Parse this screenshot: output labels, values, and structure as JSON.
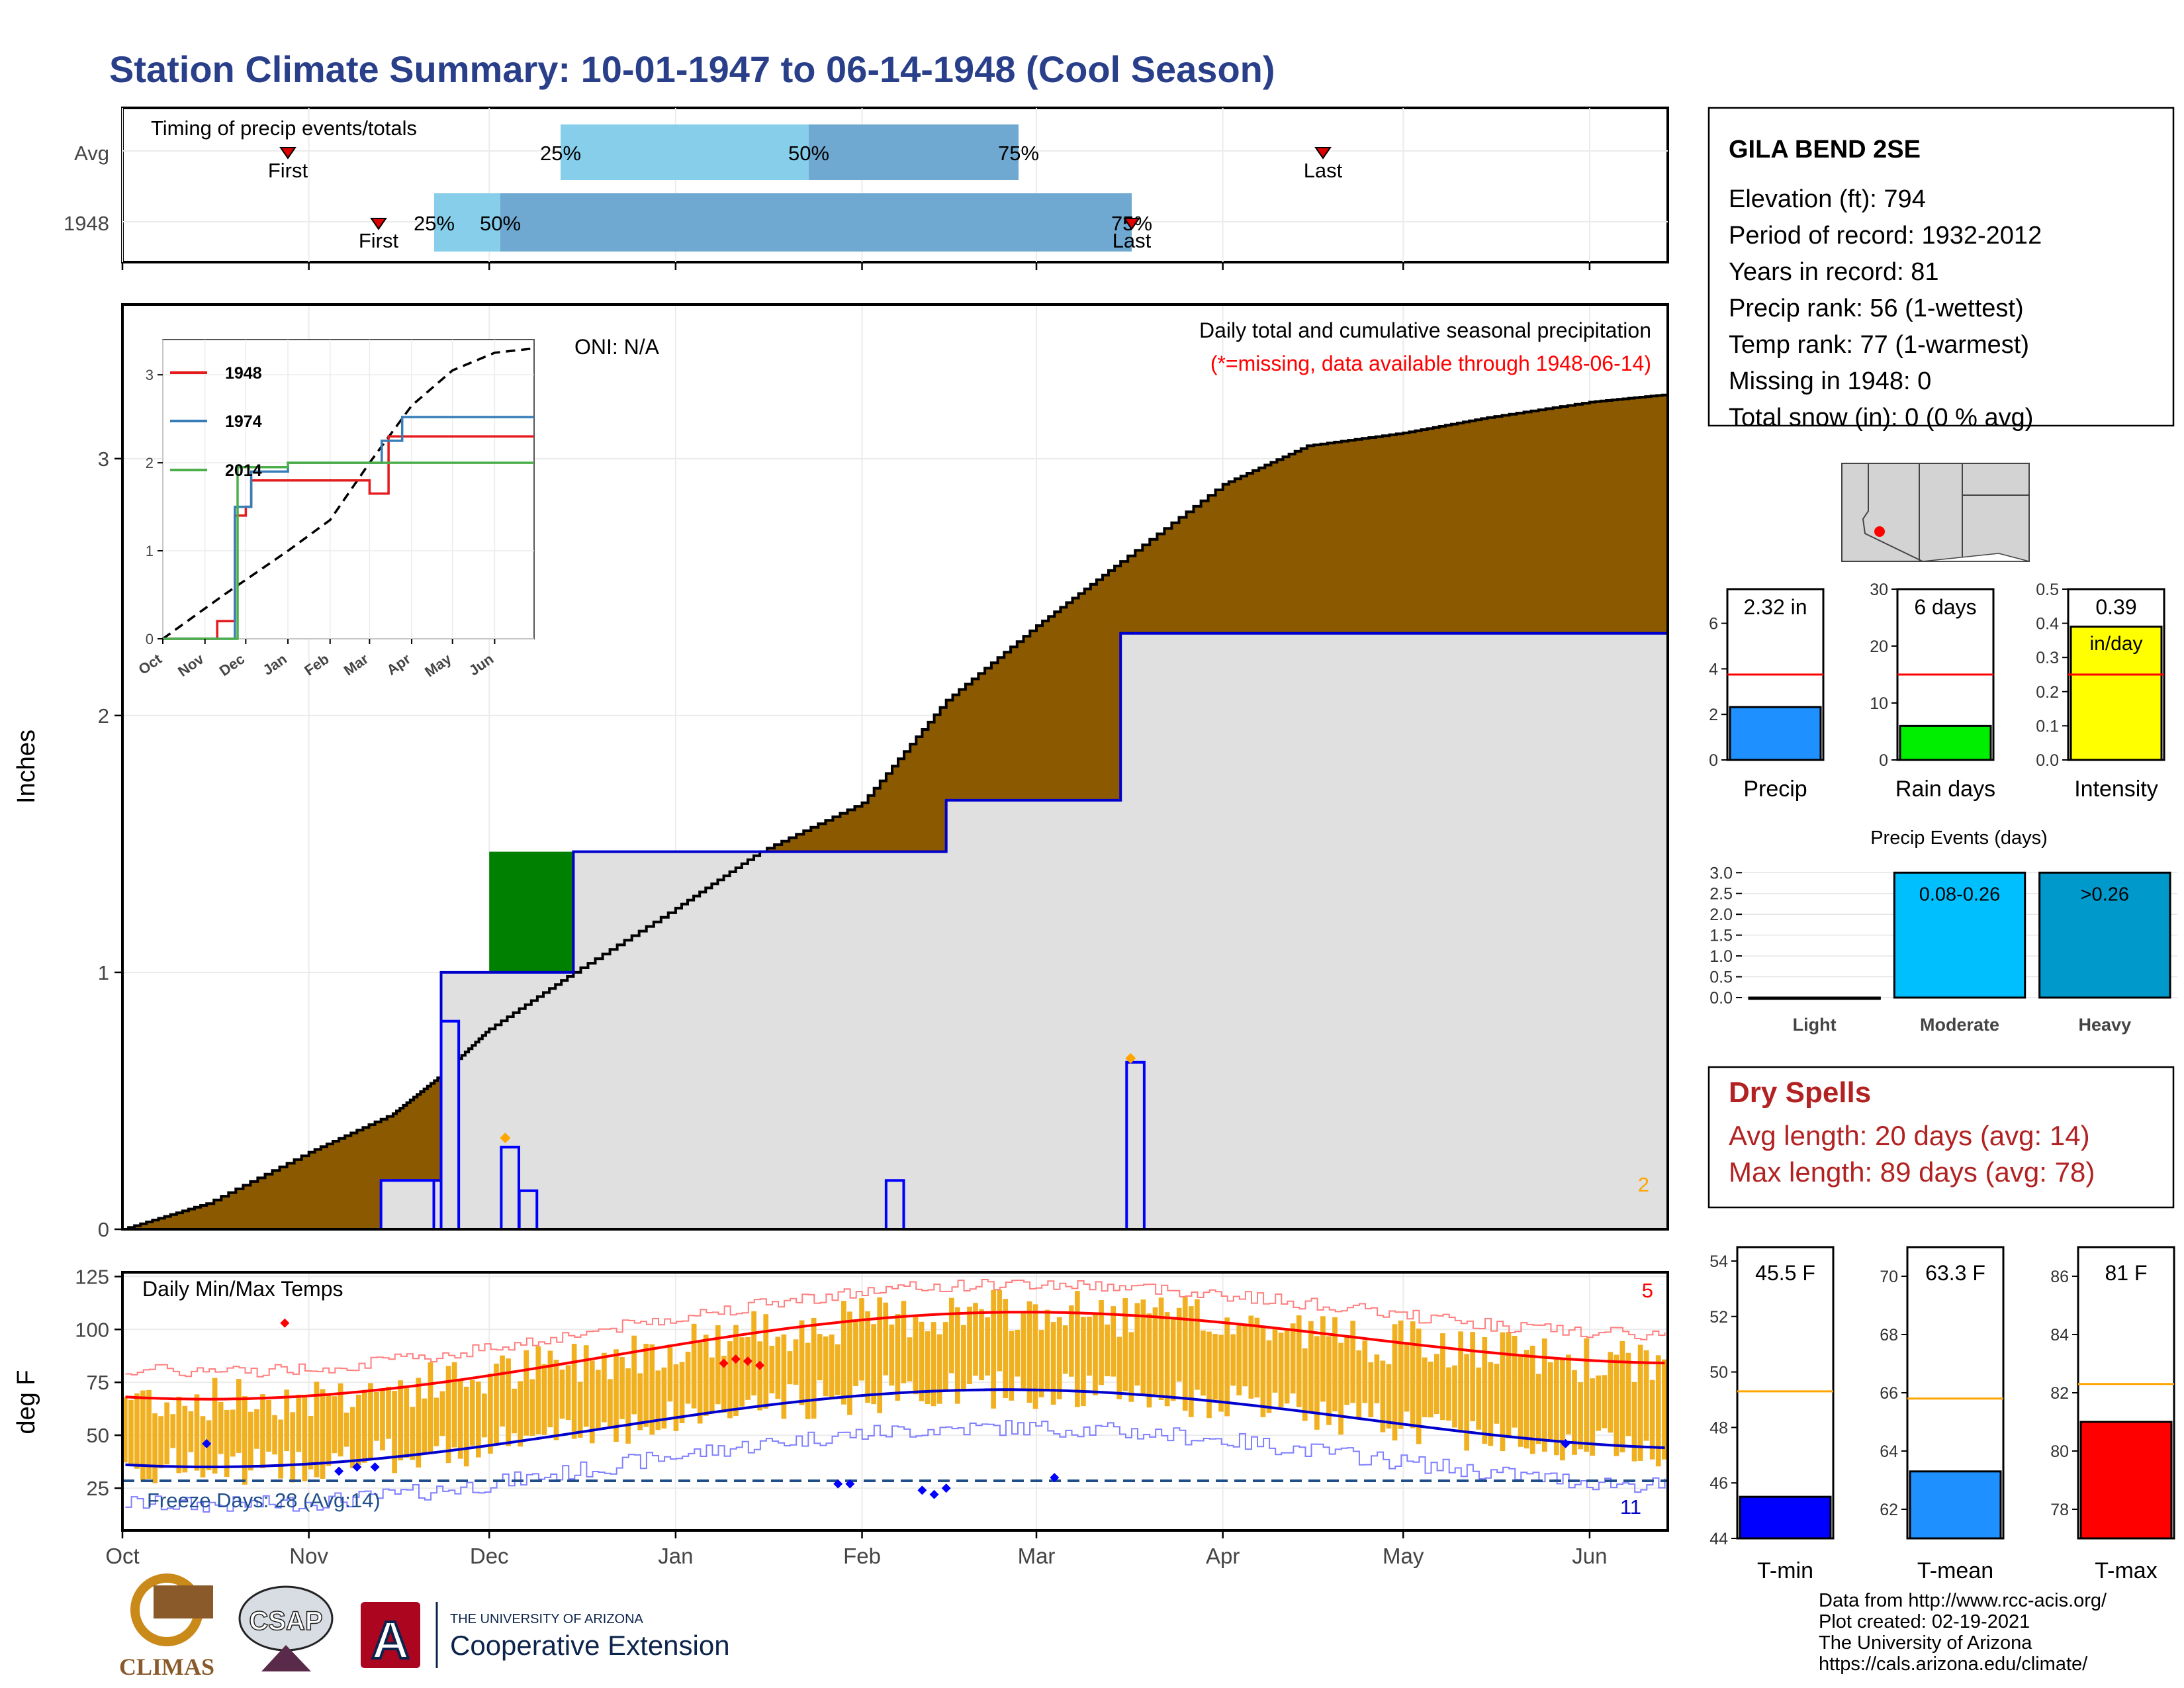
{
  "title": "Station Climate Summary: 10-01-1947 to 06-14-1948 (Cool Season)",
  "colors": {
    "title": "#2a3f8a",
    "brown": "#8b5a00",
    "green": "#008000",
    "grey_fill": "#e0e0e0",
    "blue_line": "#0000cc",
    "bar_light": "#87ceeb",
    "bar_mid": "#6fa8d0",
    "temp_bar": "#f0b020",
    "red": "#ff0000",
    "dark_red": "#b22222",
    "orange": "#ffa500"
  },
  "timing": {
    "label": "Timing of precip events/totals",
    "rows": [
      "Avg",
      "1948"
    ],
    "first": "First",
    "last": "Last",
    "p25": "25%",
    "p50": "50%",
    "p75": "75%"
  },
  "precip_panel": {
    "ylabel": "Inches",
    "oni": "ONI: N/A",
    "caption": "Daily total and cumulative seasonal precipitation",
    "missing_note": "(*=missing, data available through 1948-06-14)",
    "corner_count": "2",
    "yticks": [
      "0",
      "1",
      "2",
      "3"
    ]
  },
  "inset": {
    "yticks": [
      "0",
      "1",
      "2",
      "3"
    ],
    "months": [
      "Oct",
      "Nov",
      "Dec",
      "Jan",
      "Feb",
      "Mar",
      "Apr",
      "May",
      "Jun"
    ],
    "legend": [
      "1948",
      "1974",
      "2014"
    ]
  },
  "temp_panel": {
    "label": "Daily Min/Max Temps",
    "ylabel": "deg F",
    "freeze": "Freeze Days: 28 (Avg:14)",
    "top_count": "5",
    "bottom_count": "11",
    "yticks": [
      "25",
      "50",
      "75",
      "100",
      "125"
    ]
  },
  "x_months": [
    "Oct",
    "Nov",
    "Dec",
    "Jan",
    "Feb",
    "Mar",
    "Apr",
    "May",
    "Jun"
  ],
  "station": {
    "name": "GILA BEND 2SE",
    "lines": [
      "Elevation (ft): 794",
      "Period of record: 1932-2012",
      "Years in record: 81",
      "Precip rank: 56 (1-wettest)",
      "Temp rank: 77 (1-warmest)",
      "Missing in 1948: 0",
      "Total snow (in): 0 (0 % avg)"
    ]
  },
  "mini_bars": [
    {
      "label": "Precip",
      "value_text": "2.32 in",
      "sub": "",
      "value": 2.32,
      "avg": 3.75,
      "max": 7.5,
      "ticks": [
        "0",
        "2",
        "4",
        "6"
      ],
      "tick_vals": [
        0,
        2,
        4,
        6
      ],
      "color": "#1e90ff"
    },
    {
      "label": "Rain days",
      "value_text": "6 days",
      "sub": "",
      "value": 6,
      "avg": 15,
      "max": 30,
      "ticks": [
        "0",
        "10",
        "20",
        "30"
      ],
      "tick_vals": [
        0,
        10,
        20,
        30
      ],
      "color": "#00ee00"
    },
    {
      "label": "Intensity",
      "value_text": "0.39",
      "sub": "in/day",
      "value": 0.39,
      "avg": 0.25,
      "max": 0.5,
      "ticks": [
        "0.0",
        "0.1",
        "0.2",
        "0.3",
        "0.4",
        "0.5"
      ],
      "tick_vals": [
        0,
        0.1,
        0.2,
        0.3,
        0.4,
        0.5
      ],
      "color": "#ffff00"
    }
  ],
  "events": {
    "title": "Precip Events (days)",
    "categories": [
      "Light",
      "Moderate",
      "Heavy"
    ],
    "values": [
      0,
      3,
      3
    ],
    "labels": [
      "",
      "0.08-0.26",
      ">0.26"
    ],
    "ticks": [
      "0.0",
      "0.5",
      "1.0",
      "1.5",
      "2.0",
      "2.5",
      "3.0"
    ],
    "colors": [
      "#87ceeb",
      "#00bfff",
      "#0099cc"
    ]
  },
  "dry_spells": {
    "title": "Dry Spells",
    "avg": "Avg length: 20 days (avg: 14)",
    "max": "Max length: 89 days (avg: 78)"
  },
  "temp_bars": [
    {
      "label": "T-min",
      "value_text": "45.5 F",
      "value": 45.5,
      "avg": 49.3,
      "min": 44,
      "max": 54.5,
      "ticks": [
        "44",
        "46",
        "48",
        "50",
        "52",
        "54"
      ],
      "tick_vals": [
        44,
        46,
        48,
        50,
        52,
        54
      ],
      "color": "#0000ff"
    },
    {
      "label": "T-mean",
      "value_text": "63.3 F",
      "value": 63.3,
      "avg": 65.8,
      "min": 61,
      "max": 71,
      "ticks": [
        "62",
        "64",
        "66",
        "68",
        "70"
      ],
      "tick_vals": [
        62,
        64,
        66,
        68,
        70
      ],
      "color": "#1e90ff"
    },
    {
      "label": "T-max",
      "value_text": "81 F",
      "value": 81,
      "avg": 82.3,
      "min": 77,
      "max": 87,
      "ticks": [
        "78",
        "80",
        "82",
        "84",
        "86"
      ],
      "tick_vals": [
        78,
        80,
        82,
        84,
        86
      ],
      "color": "#ff0000"
    }
  ],
  "credits": [
    "Data from http://www.rcc-acis.org/",
    "Plot created: 02-19-2021",
    "The University of Arizona",
    "https://cals.arizona.edu/climate/"
  ],
  "logos": {
    "climas": "CLIMAS",
    "csap": "CSAP",
    "ua_small": "THE UNIVERSITY OF ARIZONA",
    "ua_big": "Cooperative Extension"
  },
  "chart_data": {
    "type": "area",
    "title": "Station Climate Summary: 10-01-1947 to 06-14-1948 (Cool Season)",
    "ylabel": "Inches",
    "x": [
      "1947-10-01",
      "1947-10-15",
      "1947-11-01",
      "1947-11-15",
      "1947-11-23",
      "1947-12-01",
      "1947-12-15",
      "1948-01-01",
      "1948-01-15",
      "1948-02-01",
      "1948-02-15",
      "1948-03-01",
      "1948-03-15",
      "1948-04-01",
      "1948-04-15",
      "1948-05-01",
      "1948-05-15",
      "1948-06-01",
      "1948-06-14"
    ],
    "series": [
      {
        "name": "1948",
        "values": [
          0,
          0,
          0,
          0.19,
          1.0,
          1.0,
          1.47,
          1.47,
          1.47,
          1.47,
          1.67,
          1.67,
          2.32,
          2.32,
          2.32,
          2.32,
          2.32,
          2.32,
          2.32
        ]
      },
      {
        "name": "Avg",
        "values": [
          0,
          0.1,
          0.3,
          0.45,
          0.6,
          0.78,
          1.0,
          1.25,
          1.47,
          1.66,
          2.06,
          2.35,
          2.6,
          2.9,
          3.05,
          3.1,
          3.16,
          3.22,
          3.25
        ]
      }
    ],
    "ylim": [
      0,
      3.3
    ]
  }
}
